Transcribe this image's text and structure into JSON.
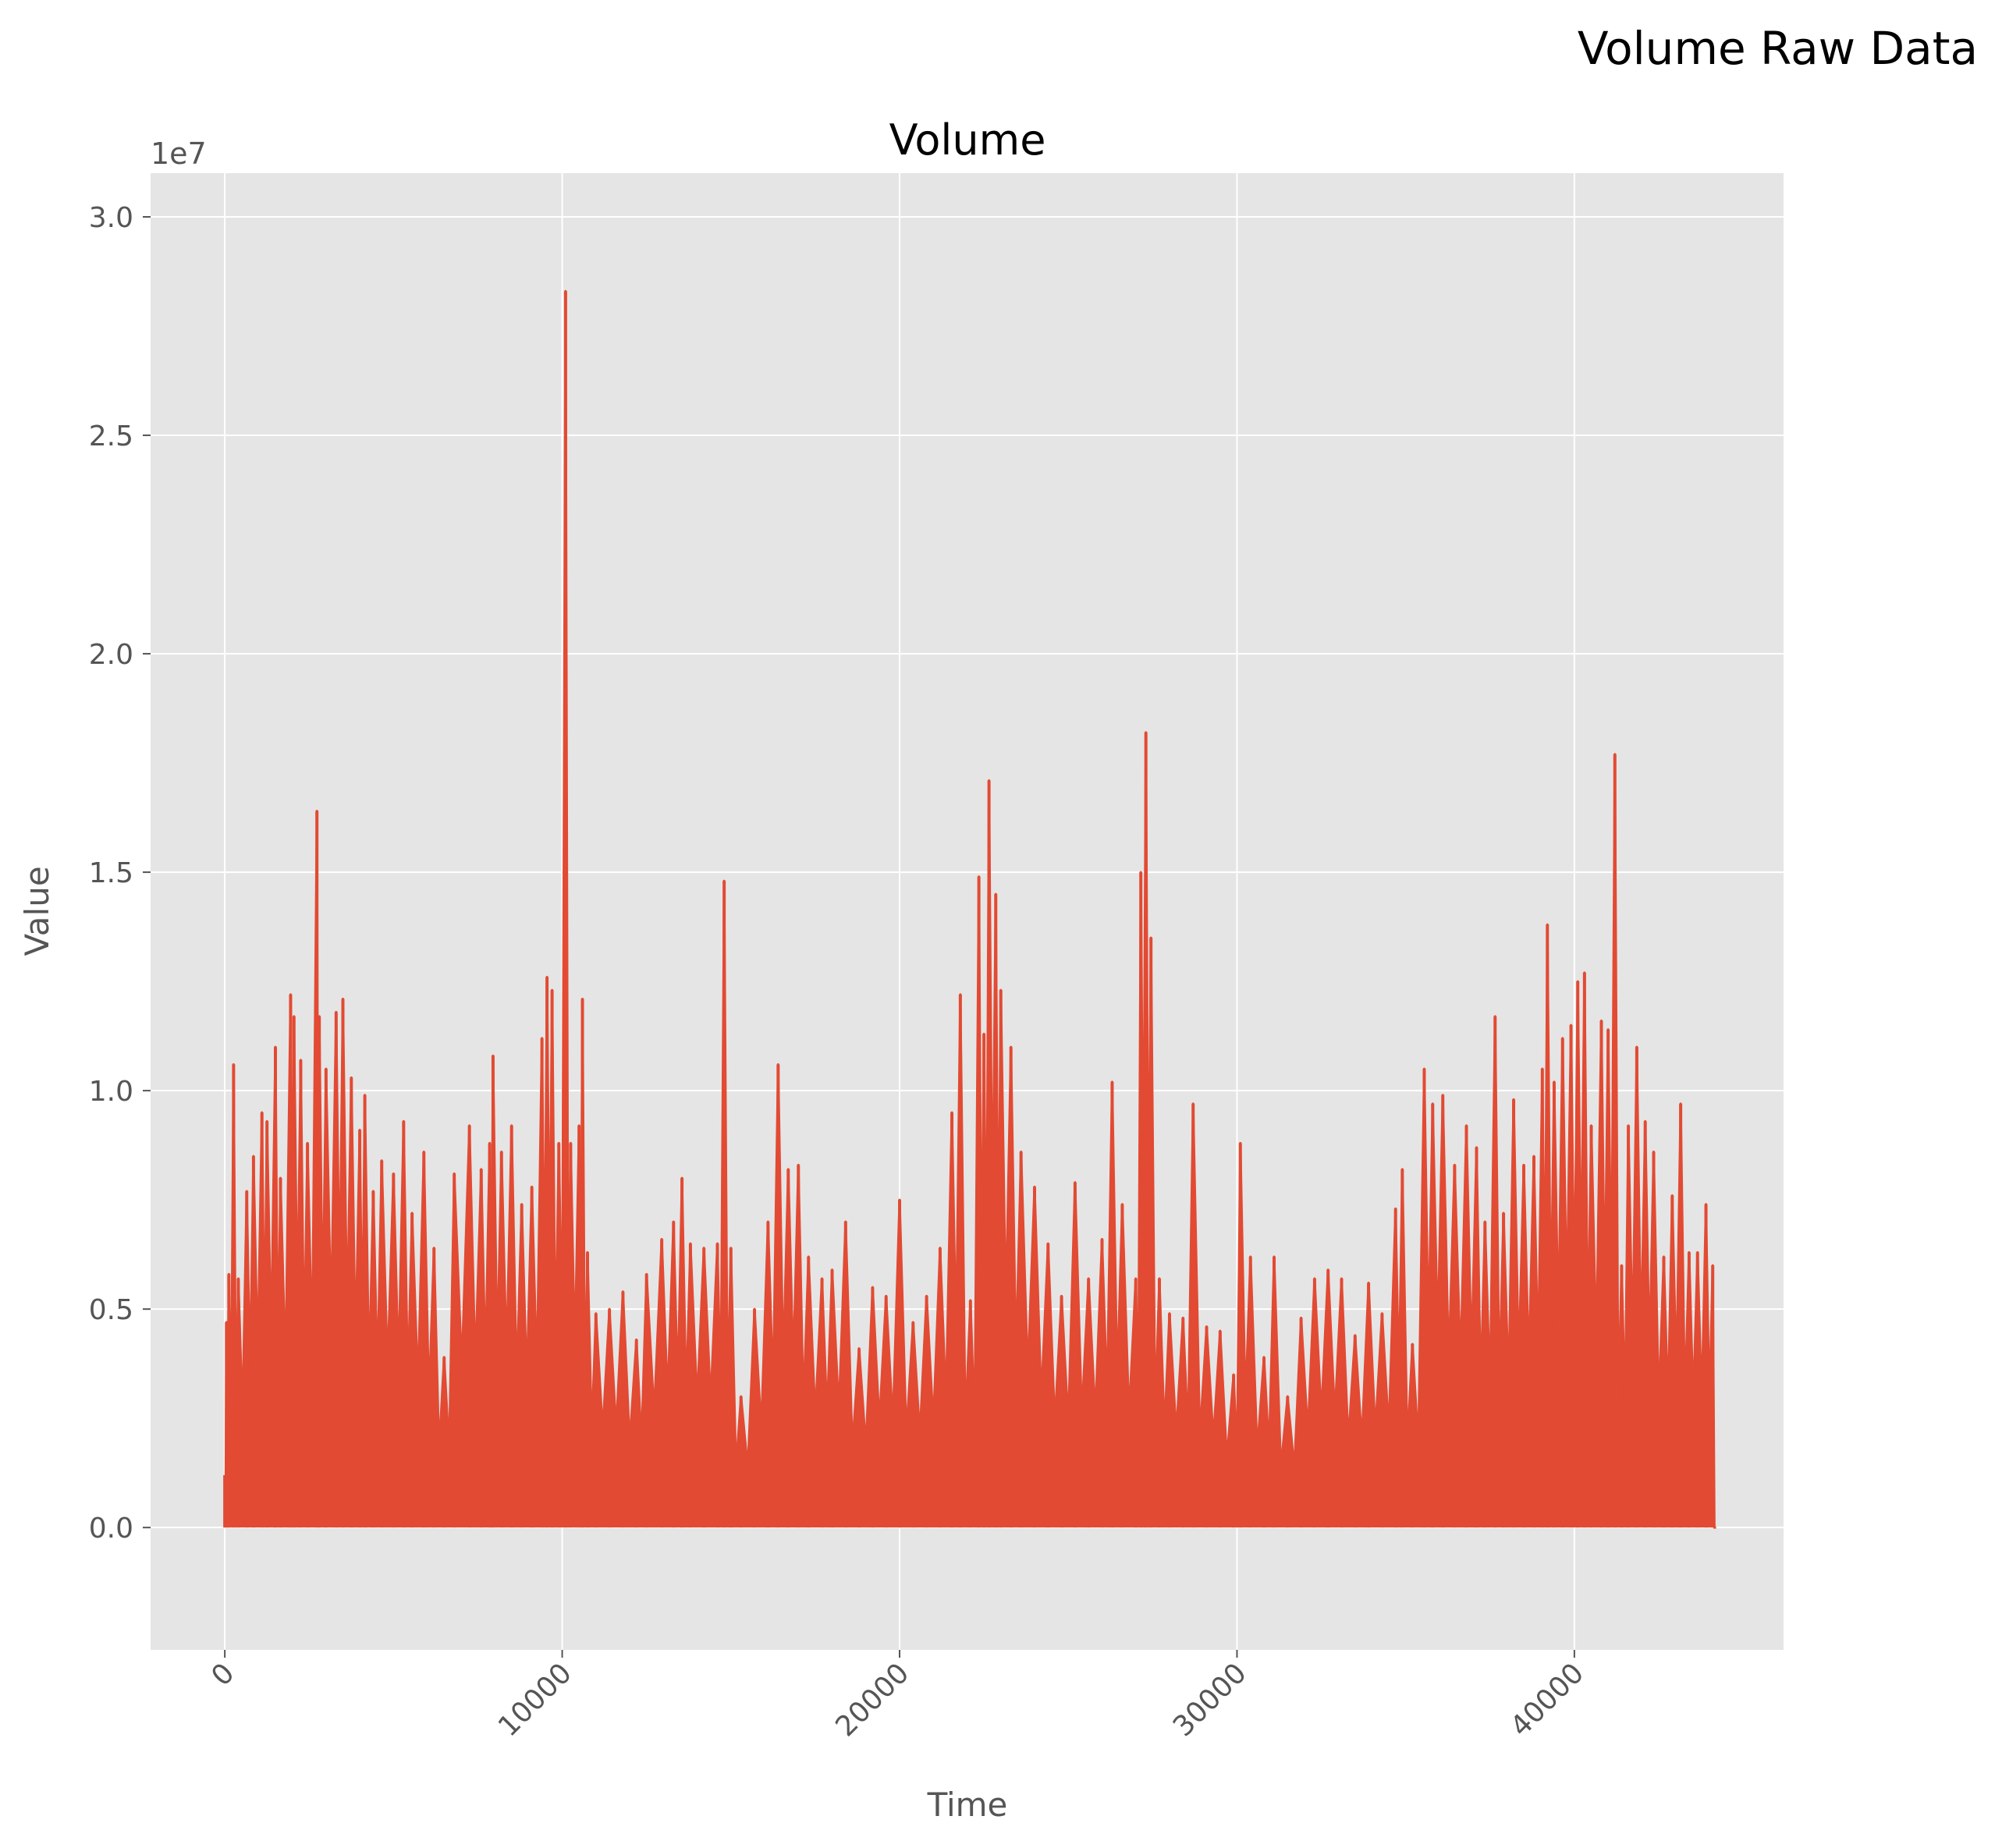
{
  "figure": {
    "suptitle": "Volume Raw Data"
  },
  "chart_data": {
    "type": "line",
    "title": "Volume",
    "xlabel": "Time",
    "ylabel": "Value",
    "y_offset_label": "1e7",
    "xlim": [
      -2200,
      46200
    ],
    "ylim": [
      -2800000,
      31000000
    ],
    "x_ticks": [
      0,
      10000,
      20000,
      30000,
      40000
    ],
    "x_tick_labels": [
      "0",
      "10000",
      "20000",
      "30000",
      "40000"
    ],
    "y_ticks": [
      0,
      5000000,
      10000000,
      15000000,
      20000000,
      25000000,
      30000000
    ],
    "y_tick_labels": [
      "0.0",
      "0.5",
      "1.0",
      "1.5",
      "2.0",
      "2.5",
      "3.0"
    ],
    "grid": true,
    "colors": {
      "series": "#E24A33",
      "axes_bg": "#E5E5E5",
      "grid": "#FFFFFF",
      "tick_text": "#555555"
    },
    "series": [
      {
        "envelope_peaks": [
          [
            0,
            1200000
          ],
          [
            50,
            4700000
          ],
          [
            120,
            5800000
          ],
          [
            260,
            10600000
          ],
          [
            400,
            5700000
          ],
          [
            650,
            7700000
          ],
          [
            850,
            8500000
          ],
          [
            1100,
            9500000
          ],
          [
            1250,
            9300000
          ],
          [
            1500,
            11000000
          ],
          [
            1650,
            8000000
          ],
          [
            1950,
            12200000
          ],
          [
            2050,
            11700000
          ],
          [
            2250,
            10700000
          ],
          [
            2450,
            8800000
          ],
          [
            2730,
            16400000
          ],
          [
            2800,
            11700000
          ],
          [
            3000,
            10500000
          ],
          [
            3300,
            11800000
          ],
          [
            3500,
            12100000
          ],
          [
            3750,
            10300000
          ],
          [
            4000,
            9100000
          ],
          [
            4150,
            9900000
          ],
          [
            4400,
            7700000
          ],
          [
            4650,
            8400000
          ],
          [
            5000,
            8100000
          ],
          [
            5300,
            9300000
          ],
          [
            5550,
            7200000
          ],
          [
            5900,
            8600000
          ],
          [
            6200,
            6400000
          ],
          [
            6500,
            3900000
          ],
          [
            6800,
            8100000
          ],
          [
            7250,
            9200000
          ],
          [
            7600,
            8200000
          ],
          [
            7850,
            8800000
          ],
          [
            7950,
            10800000
          ],
          [
            8200,
            8600000
          ],
          [
            8500,
            9200000
          ],
          [
            8800,
            7400000
          ],
          [
            9100,
            7800000
          ],
          [
            9400,
            11200000
          ],
          [
            9550,
            12600000
          ],
          [
            9700,
            12300000
          ],
          [
            9900,
            8800000
          ],
          [
            10100,
            28300000
          ],
          [
            10250,
            8800000
          ],
          [
            10500,
            9200000
          ],
          [
            10600,
            12100000
          ],
          [
            10750,
            6300000
          ],
          [
            11000,
            4900000
          ],
          [
            11400,
            5000000
          ],
          [
            11800,
            5400000
          ],
          [
            12200,
            4300000
          ],
          [
            12500,
            5800000
          ],
          [
            12950,
            6600000
          ],
          [
            13300,
            7000000
          ],
          [
            13550,
            8000000
          ],
          [
            13800,
            6500000
          ],
          [
            14200,
            6400000
          ],
          [
            14600,
            6500000
          ],
          [
            14800,
            14800000
          ],
          [
            15000,
            6400000
          ],
          [
            15300,
            3000000
          ],
          [
            15700,
            5000000
          ],
          [
            16100,
            7000000
          ],
          [
            16400,
            10600000
          ],
          [
            16700,
            8200000
          ],
          [
            17000,
            8300000
          ],
          [
            17300,
            6200000
          ],
          [
            17700,
            5700000
          ],
          [
            18000,
            5900000
          ],
          [
            18400,
            7000000
          ],
          [
            18800,
            4100000
          ],
          [
            19200,
            5500000
          ],
          [
            19600,
            5300000
          ],
          [
            20000,
            7500000
          ],
          [
            20400,
            4700000
          ],
          [
            20800,
            5300000
          ],
          [
            21200,
            6400000
          ],
          [
            21550,
            9500000
          ],
          [
            21800,
            12200000
          ],
          [
            22100,
            5200000
          ],
          [
            22350,
            14900000
          ],
          [
            22500,
            11300000
          ],
          [
            22650,
            17100000
          ],
          [
            22850,
            14500000
          ],
          [
            23000,
            12300000
          ],
          [
            23300,
            11000000
          ],
          [
            23600,
            8600000
          ],
          [
            24000,
            7800000
          ],
          [
            24400,
            6500000
          ],
          [
            24800,
            5300000
          ],
          [
            25200,
            7900000
          ],
          [
            25600,
            5700000
          ],
          [
            26000,
            6600000
          ],
          [
            26300,
            10200000
          ],
          [
            26600,
            7400000
          ],
          [
            27000,
            5700000
          ],
          [
            27150,
            15000000
          ],
          [
            27300,
            18200000
          ],
          [
            27450,
            13500000
          ],
          [
            27700,
            5700000
          ],
          [
            28000,
            4900000
          ],
          [
            28400,
            4800000
          ],
          [
            28700,
            9700000
          ],
          [
            29100,
            4600000
          ],
          [
            29500,
            4500000
          ],
          [
            29900,
            3500000
          ],
          [
            30100,
            8800000
          ],
          [
            30400,
            6200000
          ],
          [
            30800,
            3900000
          ],
          [
            31100,
            6200000
          ],
          [
            31500,
            3000000
          ],
          [
            31900,
            4800000
          ],
          [
            32300,
            5700000
          ],
          [
            32700,
            5900000
          ],
          [
            33100,
            5700000
          ],
          [
            33500,
            4400000
          ],
          [
            33900,
            5600000
          ],
          [
            34300,
            4900000
          ],
          [
            34700,
            7300000
          ],
          [
            34900,
            8200000
          ],
          [
            35200,
            4200000
          ],
          [
            35550,
            10500000
          ],
          [
            35800,
            9700000
          ],
          [
            36100,
            9900000
          ],
          [
            36450,
            8300000
          ],
          [
            36800,
            9200000
          ],
          [
            37100,
            8700000
          ],
          [
            37350,
            7000000
          ],
          [
            37650,
            11700000
          ],
          [
            37900,
            7200000
          ],
          [
            38200,
            9800000
          ],
          [
            38500,
            8300000
          ],
          [
            38800,
            8500000
          ],
          [
            39050,
            10500000
          ],
          [
            39200,
            13800000
          ],
          [
            39400,
            10200000
          ],
          [
            39650,
            11200000
          ],
          [
            39900,
            11500000
          ],
          [
            40100,
            12500000
          ],
          [
            40300,
            12700000
          ],
          [
            40500,
            9200000
          ],
          [
            40800,
            11600000
          ],
          [
            41000,
            11400000
          ],
          [
            41200,
            17700000
          ],
          [
            41400,
            6000000
          ],
          [
            41600,
            9200000
          ],
          [
            41850,
            11000000
          ],
          [
            42100,
            9300000
          ],
          [
            42350,
            8600000
          ],
          [
            42650,
            6200000
          ],
          [
            42900,
            7600000
          ],
          [
            43150,
            9700000
          ],
          [
            43400,
            6300000
          ],
          [
            43650,
            6300000
          ],
          [
            43900,
            7400000
          ],
          [
            44100,
            6000000
          ],
          [
            44200,
            0
          ]
        ]
      }
    ]
  }
}
